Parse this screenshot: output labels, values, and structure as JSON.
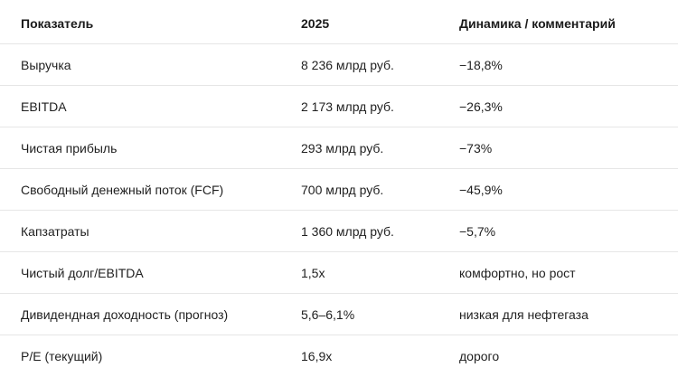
{
  "table": {
    "headers": [
      "Показатель",
      "2025",
      "Динамика / комментарий"
    ],
    "rows": [
      [
        "Выручка",
        "8 236 млрд руб.",
        "−18,8%"
      ],
      [
        "EBITDA",
        "2 173 млрд руб.",
        "−26,3%"
      ],
      [
        "Чистая прибыль",
        "293 млрд руб.",
        "−73%"
      ],
      [
        "Свободный денежный поток (FCF)",
        "700 млрд руб.",
        "−45,9%"
      ],
      [
        "Капзатраты",
        "1 360 млрд руб.",
        "−5,7%"
      ],
      [
        "Чистый долг/EBITDA",
        "1,5x",
        "комфортно, но рост"
      ],
      [
        "Дивидендная доходность (прогноз)",
        "5,6–6,1%",
        "низкая для нефтегаза"
      ],
      [
        "P/E (текущий)",
        "16,9x",
        "дорого"
      ]
    ]
  }
}
